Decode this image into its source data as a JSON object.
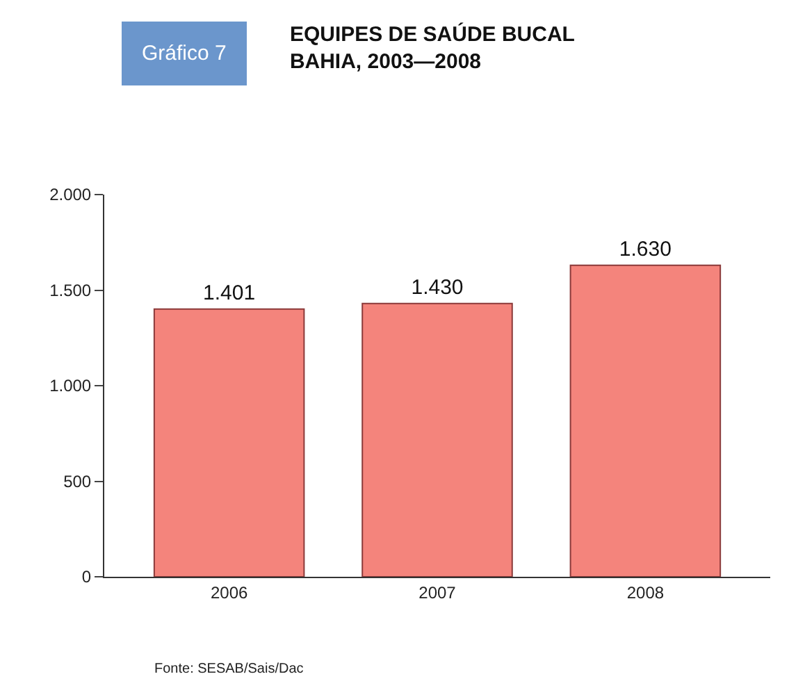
{
  "chart_data": {
    "type": "bar",
    "title": "EQUIPES DE SAÚDE BUCAL\nBAHIA, 2003—2008",
    "categories": [
      "2006",
      "2007",
      "2008"
    ],
    "values": [
      1401,
      1430,
      1630
    ],
    "value_labels": [
      "1.401",
      "1.430",
      "1.630"
    ],
    "color": "#f4847c",
    "ylim": [
      0,
      2000
    ],
    "yticks": [
      0,
      500,
      {
        "value": 1000,
        "label": "1.000"
      },
      {
        "value": 1500,
        "label": "1.500"
      },
      {
        "value": 2000,
        "label": "2.000"
      }
    ],
    "annotations": [
      "Gráfico 7",
      "Fonte: SESAB/Sais/Dac"
    ]
  }
}
